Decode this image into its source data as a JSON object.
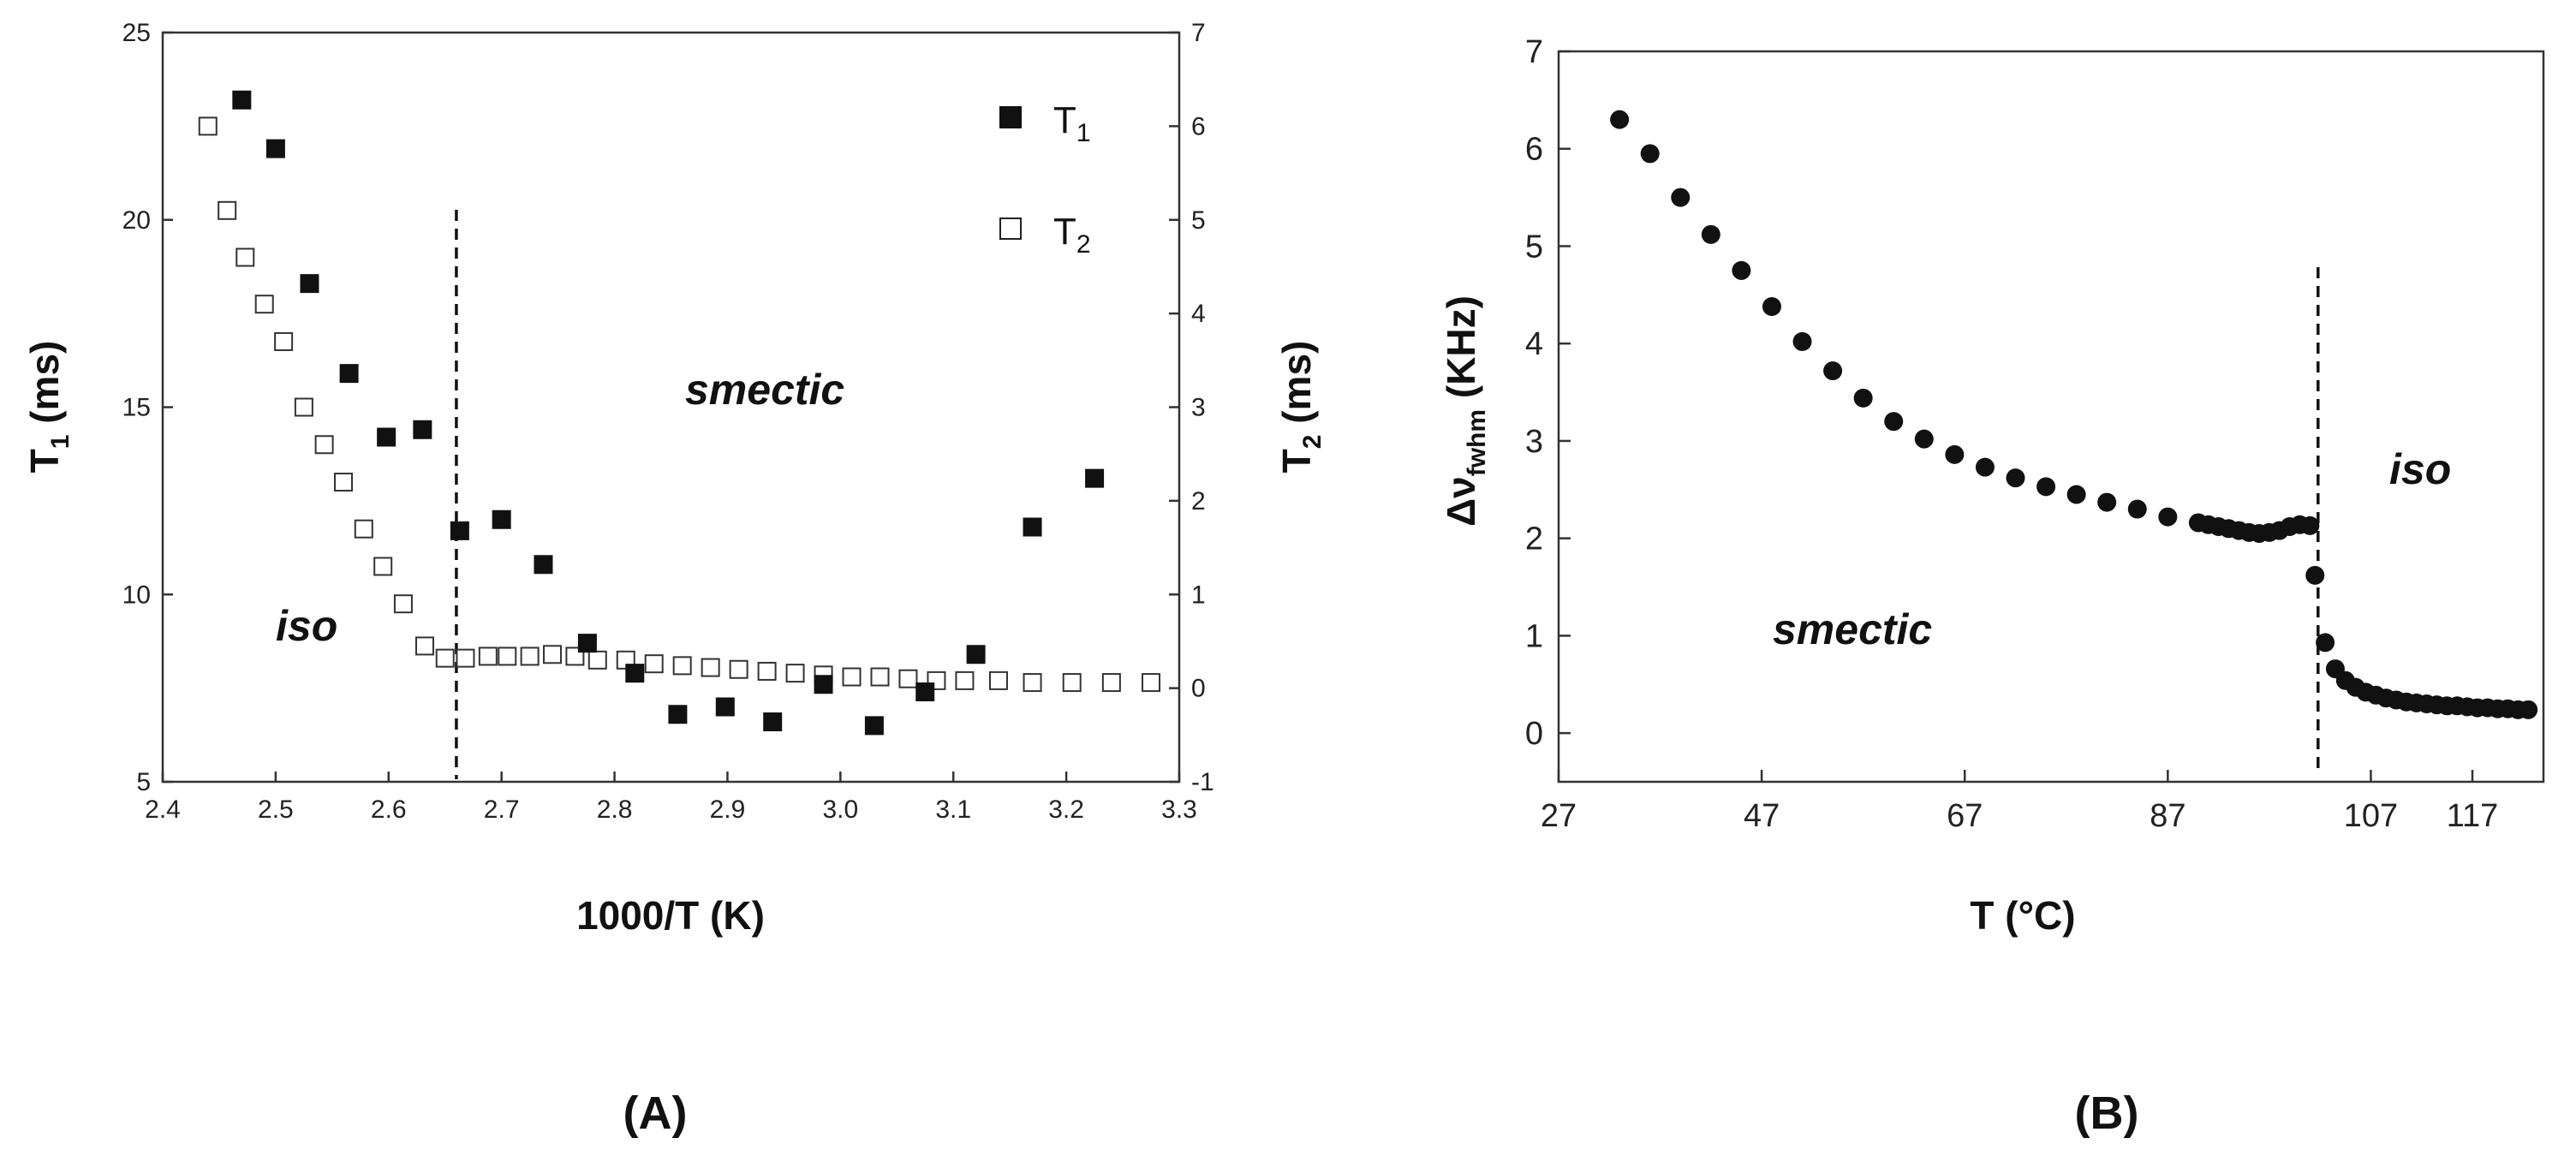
{
  "chart_data": [
    {
      "type": "scatter",
      "panel_label": "(A)",
      "xlabel": "1000/T (K)",
      "ylabel_left": {
        "base": "T",
        "sub": "1",
        "unit": " (ms)"
      },
      "ylabel_right": {
        "base": "T",
        "sub": "2",
        "unit": " (ms)"
      },
      "xlim": [
        2.4,
        3.3
      ],
      "xticks": [
        "2.4",
        "2.5",
        "2.6",
        "2.7",
        "2.8",
        "2.9",
        "3.0",
        "3.1",
        "3.2",
        "3.3"
      ],
      "ylim_left": [
        5,
        25
      ],
      "yticks_left": [
        "5",
        "10",
        "15",
        "20",
        "25"
      ],
      "ylim_right": [
        -1,
        7
      ],
      "yticks_right": [
        "-1",
        "0",
        "1",
        "2",
        "3",
        "4",
        "5",
        "6",
        "7"
      ],
      "legend": [
        {
          "base": "T",
          "sub": "1",
          "marker": "filled-square"
        },
        {
          "base": "T",
          "sub": "2",
          "marker": "open-square"
        }
      ],
      "legend_position": "top-right",
      "annotations": [
        "smectic",
        "iso"
      ],
      "transition_x": 2.66,
      "series": [
        {
          "name": "T1",
          "axis": "left",
          "x": [
            2.47,
            2.5,
            2.53,
            2.565,
            2.598,
            2.63,
            2.663,
            2.7,
            2.737,
            2.776,
            2.818,
            2.856,
            2.898,
            2.94,
            2.985,
            3.03,
            3.075,
            3.12,
            3.17,
            3.225
          ],
          "y": [
            23.2,
            21.9,
            18.3,
            15.9,
            14.2,
            14.4,
            11.7,
            12.0,
            10.8,
            8.7,
            7.9,
            6.8,
            7.0,
            6.6,
            7.6,
            6.5,
            7.4,
            8.4,
            11.8,
            13.1
          ]
        },
        {
          "name": "T2",
          "axis": "right",
          "x": [
            2.44,
            2.457,
            2.473,
            2.49,
            2.507,
            2.525,
            2.543,
            2.56,
            2.578,
            2.595,
            2.613,
            2.632,
            2.65,
            2.668,
            2.688,
            2.705,
            2.725,
            2.745,
            2.765,
            2.785,
            2.81,
            2.835,
            2.86,
            2.885,
            2.91,
            2.935,
            2.96,
            2.985,
            3.01,
            3.035,
            3.06,
            3.085,
            3.11,
            3.14,
            3.17,
            3.205,
            3.24,
            3.275
          ],
          "y": [
            6.0,
            5.1,
            4.6,
            4.1,
            3.7,
            3.0,
            2.6,
            2.2,
            1.7,
            1.3,
            0.9,
            0.45,
            0.32,
            0.32,
            0.34,
            0.34,
            0.34,
            0.36,
            0.34,
            0.3,
            0.3,
            0.26,
            0.24,
            0.22,
            0.2,
            0.18,
            0.16,
            0.14,
            0.12,
            0.12,
            0.1,
            0.08,
            0.08,
            0.08,
            0.06,
            0.06,
            0.06,
            0.06
          ]
        }
      ]
    },
    {
      "type": "scatter",
      "panel_label": "(B)",
      "xlabel": "T (°C)",
      "ylabel": {
        "base": "Δν",
        "sub": "fwhm",
        "unit": " (KHz)"
      },
      "xlim": [
        27,
        124
      ],
      "xticks": [
        "27",
        "47",
        "67",
        "87",
        "107",
        "117"
      ],
      "ylim": [
        -0.5,
        7
      ],
      "yticks": [
        "0",
        "1",
        "2",
        "3",
        "4",
        "5",
        "6",
        "7"
      ],
      "annotations": [
        "smectic",
        "iso"
      ],
      "transition_x": 101.8,
      "series": [
        {
          "name": "",
          "x": [
            33,
            36,
            39,
            42,
            45,
            48,
            51,
            54,
            57,
            60,
            63,
            66,
            69,
            72,
            75,
            78,
            81,
            84,
            87,
            90,
            91,
            92,
            93,
            94,
            95,
            96,
            97,
            98,
            99,
            100,
            101,
            101.5,
            102.5,
            103.5,
            104.5,
            105.5,
            106.5,
            107.5,
            108.5,
            109.5,
            110.5,
            111.5,
            112.5,
            113.5,
            114.5,
            115.5,
            116.5,
            117.5,
            118.5,
            119.5,
            120.5,
            121.5,
            122.5
          ],
          "y": [
            6.3,
            5.95,
            5.5,
            5.12,
            4.75,
            4.38,
            4.02,
            3.72,
            3.44,
            3.2,
            3.02,
            2.86,
            2.73,
            2.62,
            2.53,
            2.45,
            2.37,
            2.3,
            2.22,
            2.16,
            2.14,
            2.12,
            2.1,
            2.08,
            2.06,
            2.05,
            2.06,
            2.08,
            2.12,
            2.14,
            2.13,
            1.62,
            0.93,
            0.66,
            0.54,
            0.47,
            0.42,
            0.39,
            0.36,
            0.34,
            0.32,
            0.31,
            0.3,
            0.29,
            0.28,
            0.28,
            0.27,
            0.26,
            0.26,
            0.25,
            0.25,
            0.24,
            0.24
          ]
        }
      ]
    }
  ]
}
